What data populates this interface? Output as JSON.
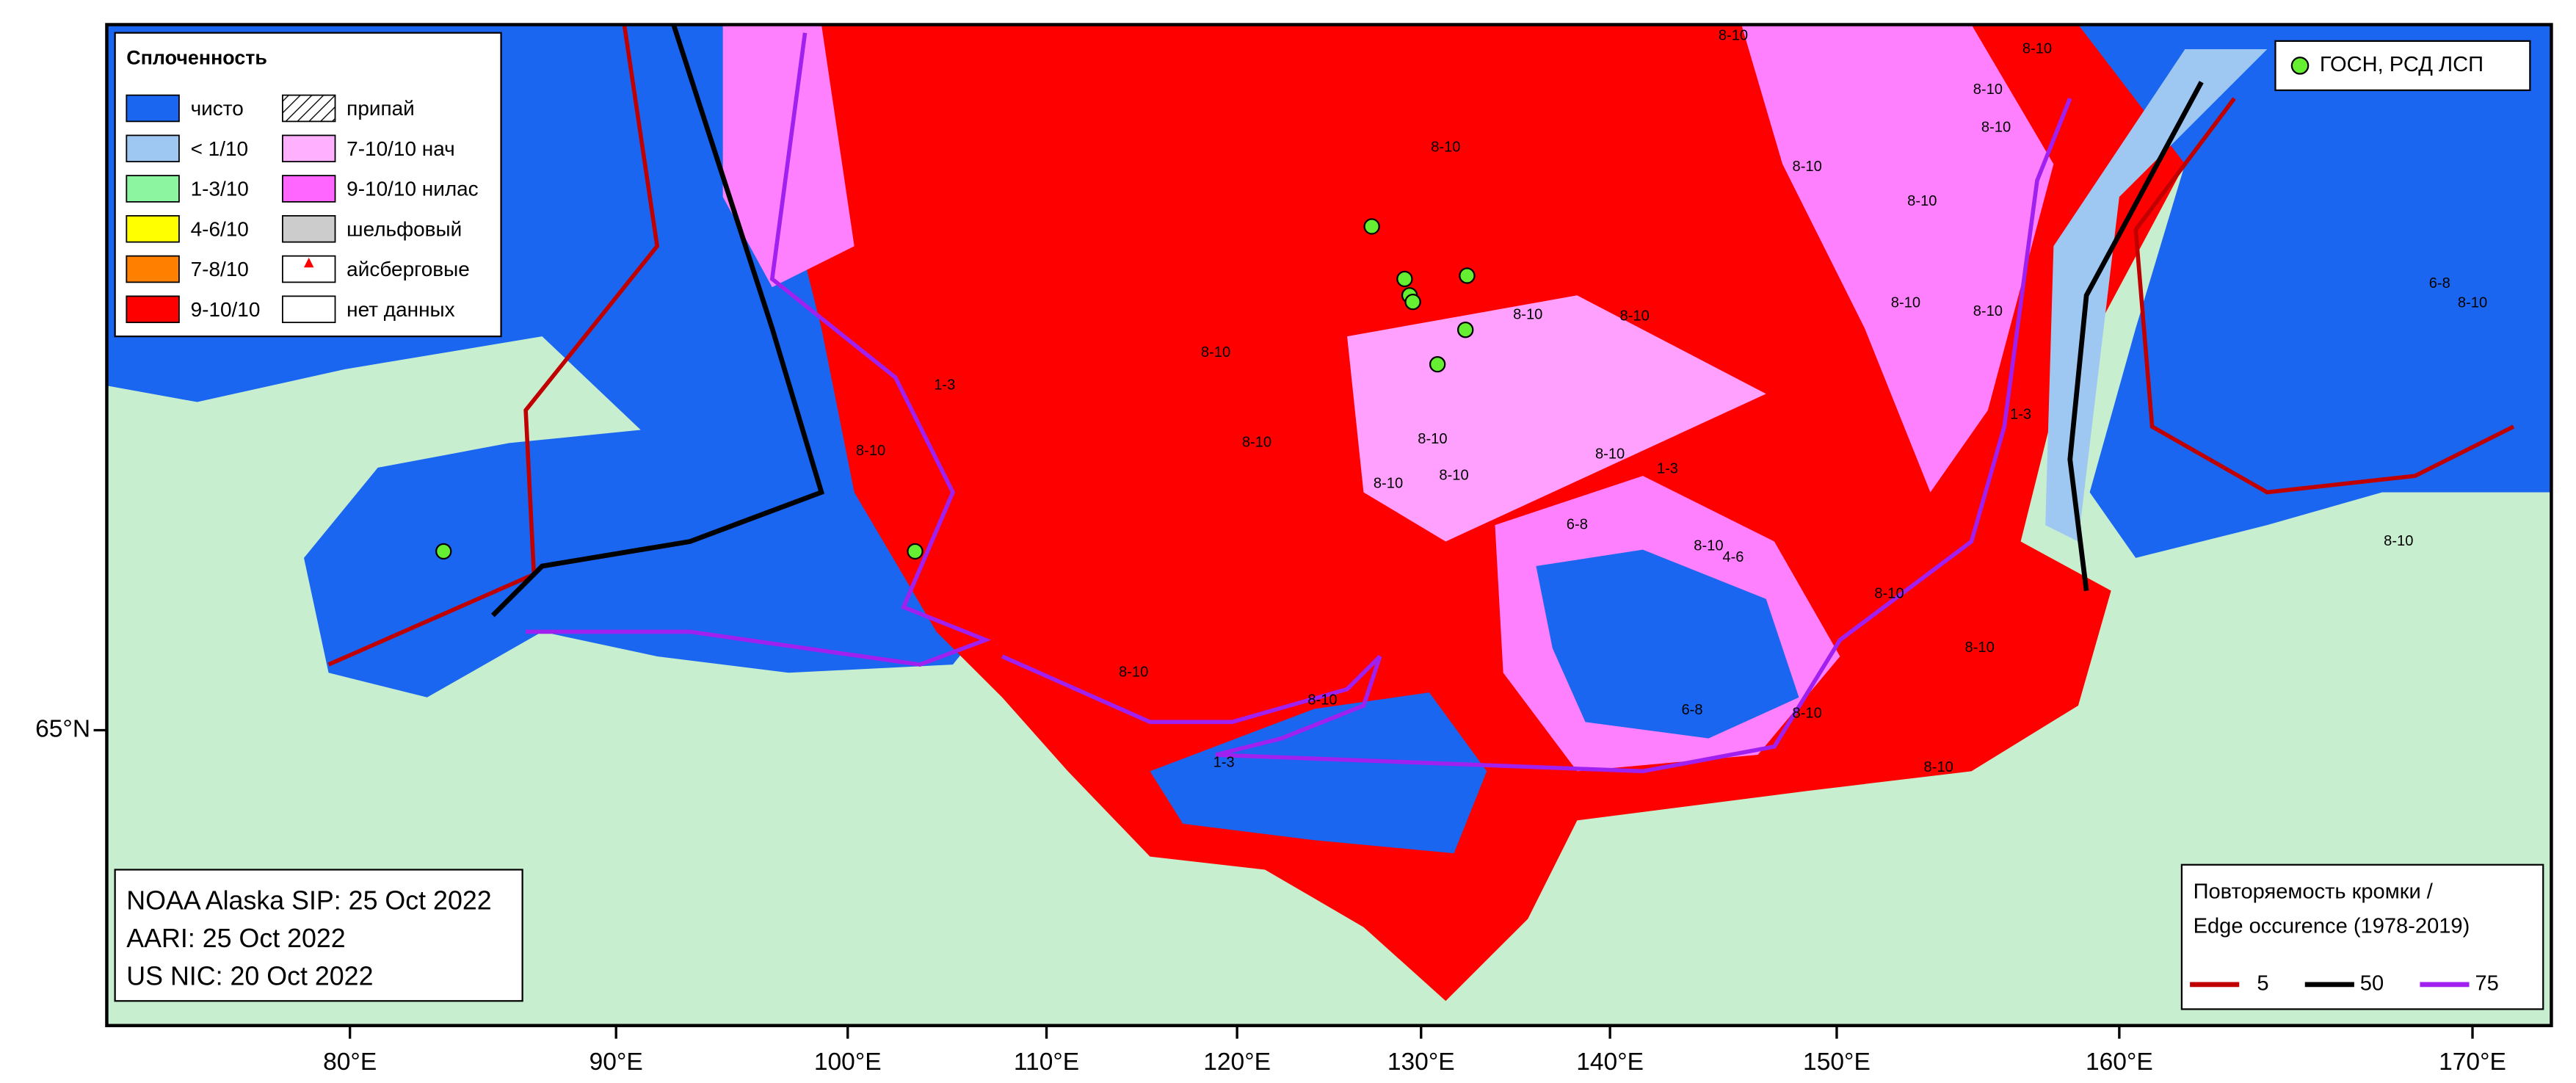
{
  "legend": {
    "title": "Сплоченность",
    "items": [
      {
        "label": "чисто",
        "color": "#1a66f0"
      },
      {
        "label": "< 1/10",
        "color": "#9ec8f2"
      },
      {
        "label": "1-3/10",
        "color": "#8cf5a0"
      },
      {
        "label": "4-6/10",
        "color": "#ffff00"
      },
      {
        "label": "7-8/10",
        "color": "#ff8000"
      },
      {
        "label": "9-10/10",
        "color": "#ff0000"
      },
      {
        "label": "припай",
        "color": "hatch"
      },
      {
        "label": "7-10/10 нач",
        "color": "#ffb0ff"
      },
      {
        "label": "9-10/10 нилас",
        "color": "#ff66ff"
      },
      {
        "label": "шельфовый",
        "color": "#cccccc"
      },
      {
        "label": "айсберговые",
        "color": "iceberg"
      },
      {
        "label": "нет данных",
        "color": "#ffffff"
      }
    ]
  },
  "stations": {
    "label": "ГОСН, РСД ЛСП",
    "color": "#66ee33"
  },
  "sources": [
    "NOAA Alaska SIP: 25 Oct 2022",
    "AARI: 25 Oct 2022",
    "US NIC: 20 Oct 2022"
  ],
  "edge_legend": {
    "title_lines": [
      "Повторяемость кромки /",
      "Edge occurence (1978-2019)"
    ],
    "items": [
      {
        "label": "5",
        "color": "#c00000"
      },
      {
        "label": "50",
        "color": "#000000"
      },
      {
        "label": "75",
        "color": "#a020f0"
      }
    ]
  },
  "axes": {
    "lon_labels": [
      "80°E",
      "90°E",
      "100°E",
      "110°E",
      "120°E",
      "130°E",
      "140°E",
      "150°E",
      "160°E",
      "170°E"
    ],
    "lat_labels": [
      "65°N"
    ]
  },
  "ice_labels": [
    "8-10",
    "8-10",
    "8-10",
    "8-10",
    "8-10",
    "8-10",
    "8-10",
    "8-10",
    "8-10",
    "8-10",
    "8-10",
    "8-10",
    "8-10",
    "8-10",
    "8-10",
    "8-10",
    "8-10",
    "1-3",
    "6-8",
    "8-10",
    "4-6",
    "8-10",
    "8-10",
    "8-10",
    "8-10",
    "8-10",
    "1-3",
    "6-8",
    "8-10",
    "8-10",
    "1-3",
    "1-3",
    "8-10",
    "8-10",
    "6-8"
  ]
}
